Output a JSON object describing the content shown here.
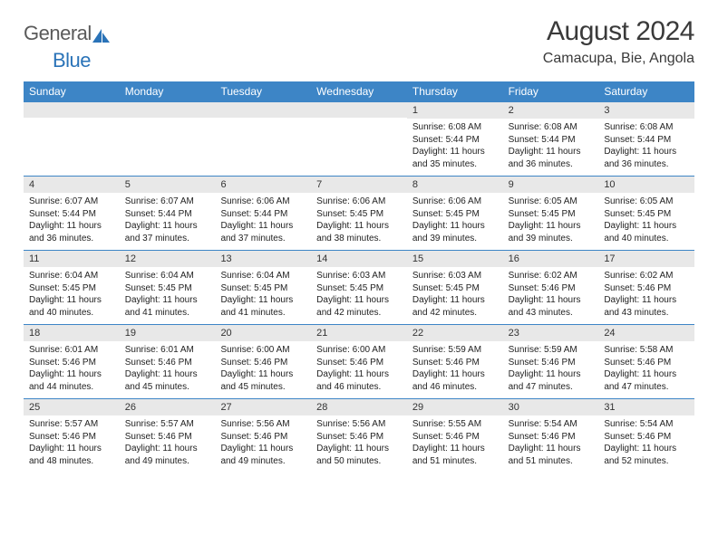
{
  "logo": {
    "text1": "General",
    "text2": "Blue"
  },
  "title": "August 2024",
  "location": "Camacupa, Bie, Angola",
  "colors": {
    "header_bg": "#3d85c6",
    "header_text": "#ffffff",
    "daynum_bg": "#e8e8e8",
    "border": "#3d85c6",
    "body_text": "#222222",
    "logo_gray": "#5a5a5a",
    "logo_blue": "#2a73b8"
  },
  "weekdays": [
    "Sunday",
    "Monday",
    "Tuesday",
    "Wednesday",
    "Thursday",
    "Friday",
    "Saturday"
  ],
  "weeks": [
    [
      {
        "n": "",
        "sr": "",
        "ss": "",
        "dl": ""
      },
      {
        "n": "",
        "sr": "",
        "ss": "",
        "dl": ""
      },
      {
        "n": "",
        "sr": "",
        "ss": "",
        "dl": ""
      },
      {
        "n": "",
        "sr": "",
        "ss": "",
        "dl": ""
      },
      {
        "n": "1",
        "sr": "Sunrise: 6:08 AM",
        "ss": "Sunset: 5:44 PM",
        "dl": "Daylight: 11 hours and 35 minutes."
      },
      {
        "n": "2",
        "sr": "Sunrise: 6:08 AM",
        "ss": "Sunset: 5:44 PM",
        "dl": "Daylight: 11 hours and 36 minutes."
      },
      {
        "n": "3",
        "sr": "Sunrise: 6:08 AM",
        "ss": "Sunset: 5:44 PM",
        "dl": "Daylight: 11 hours and 36 minutes."
      }
    ],
    [
      {
        "n": "4",
        "sr": "Sunrise: 6:07 AM",
        "ss": "Sunset: 5:44 PM",
        "dl": "Daylight: 11 hours and 36 minutes."
      },
      {
        "n": "5",
        "sr": "Sunrise: 6:07 AM",
        "ss": "Sunset: 5:44 PM",
        "dl": "Daylight: 11 hours and 37 minutes."
      },
      {
        "n": "6",
        "sr": "Sunrise: 6:06 AM",
        "ss": "Sunset: 5:44 PM",
        "dl": "Daylight: 11 hours and 37 minutes."
      },
      {
        "n": "7",
        "sr": "Sunrise: 6:06 AM",
        "ss": "Sunset: 5:45 PM",
        "dl": "Daylight: 11 hours and 38 minutes."
      },
      {
        "n": "8",
        "sr": "Sunrise: 6:06 AM",
        "ss": "Sunset: 5:45 PM",
        "dl": "Daylight: 11 hours and 39 minutes."
      },
      {
        "n": "9",
        "sr": "Sunrise: 6:05 AM",
        "ss": "Sunset: 5:45 PM",
        "dl": "Daylight: 11 hours and 39 minutes."
      },
      {
        "n": "10",
        "sr": "Sunrise: 6:05 AM",
        "ss": "Sunset: 5:45 PM",
        "dl": "Daylight: 11 hours and 40 minutes."
      }
    ],
    [
      {
        "n": "11",
        "sr": "Sunrise: 6:04 AM",
        "ss": "Sunset: 5:45 PM",
        "dl": "Daylight: 11 hours and 40 minutes."
      },
      {
        "n": "12",
        "sr": "Sunrise: 6:04 AM",
        "ss": "Sunset: 5:45 PM",
        "dl": "Daylight: 11 hours and 41 minutes."
      },
      {
        "n": "13",
        "sr": "Sunrise: 6:04 AM",
        "ss": "Sunset: 5:45 PM",
        "dl": "Daylight: 11 hours and 41 minutes."
      },
      {
        "n": "14",
        "sr": "Sunrise: 6:03 AM",
        "ss": "Sunset: 5:45 PM",
        "dl": "Daylight: 11 hours and 42 minutes."
      },
      {
        "n": "15",
        "sr": "Sunrise: 6:03 AM",
        "ss": "Sunset: 5:45 PM",
        "dl": "Daylight: 11 hours and 42 minutes."
      },
      {
        "n": "16",
        "sr": "Sunrise: 6:02 AM",
        "ss": "Sunset: 5:46 PM",
        "dl": "Daylight: 11 hours and 43 minutes."
      },
      {
        "n": "17",
        "sr": "Sunrise: 6:02 AM",
        "ss": "Sunset: 5:46 PM",
        "dl": "Daylight: 11 hours and 43 minutes."
      }
    ],
    [
      {
        "n": "18",
        "sr": "Sunrise: 6:01 AM",
        "ss": "Sunset: 5:46 PM",
        "dl": "Daylight: 11 hours and 44 minutes."
      },
      {
        "n": "19",
        "sr": "Sunrise: 6:01 AM",
        "ss": "Sunset: 5:46 PM",
        "dl": "Daylight: 11 hours and 45 minutes."
      },
      {
        "n": "20",
        "sr": "Sunrise: 6:00 AM",
        "ss": "Sunset: 5:46 PM",
        "dl": "Daylight: 11 hours and 45 minutes."
      },
      {
        "n": "21",
        "sr": "Sunrise: 6:00 AM",
        "ss": "Sunset: 5:46 PM",
        "dl": "Daylight: 11 hours and 46 minutes."
      },
      {
        "n": "22",
        "sr": "Sunrise: 5:59 AM",
        "ss": "Sunset: 5:46 PM",
        "dl": "Daylight: 11 hours and 46 minutes."
      },
      {
        "n": "23",
        "sr": "Sunrise: 5:59 AM",
        "ss": "Sunset: 5:46 PM",
        "dl": "Daylight: 11 hours and 47 minutes."
      },
      {
        "n": "24",
        "sr": "Sunrise: 5:58 AM",
        "ss": "Sunset: 5:46 PM",
        "dl": "Daylight: 11 hours and 47 minutes."
      }
    ],
    [
      {
        "n": "25",
        "sr": "Sunrise: 5:57 AM",
        "ss": "Sunset: 5:46 PM",
        "dl": "Daylight: 11 hours and 48 minutes."
      },
      {
        "n": "26",
        "sr": "Sunrise: 5:57 AM",
        "ss": "Sunset: 5:46 PM",
        "dl": "Daylight: 11 hours and 49 minutes."
      },
      {
        "n": "27",
        "sr": "Sunrise: 5:56 AM",
        "ss": "Sunset: 5:46 PM",
        "dl": "Daylight: 11 hours and 49 minutes."
      },
      {
        "n": "28",
        "sr": "Sunrise: 5:56 AM",
        "ss": "Sunset: 5:46 PM",
        "dl": "Daylight: 11 hours and 50 minutes."
      },
      {
        "n": "29",
        "sr": "Sunrise: 5:55 AM",
        "ss": "Sunset: 5:46 PM",
        "dl": "Daylight: 11 hours and 51 minutes."
      },
      {
        "n": "30",
        "sr": "Sunrise: 5:54 AM",
        "ss": "Sunset: 5:46 PM",
        "dl": "Daylight: 11 hours and 51 minutes."
      },
      {
        "n": "31",
        "sr": "Sunrise: 5:54 AM",
        "ss": "Sunset: 5:46 PM",
        "dl": "Daylight: 11 hours and 52 minutes."
      }
    ]
  ]
}
